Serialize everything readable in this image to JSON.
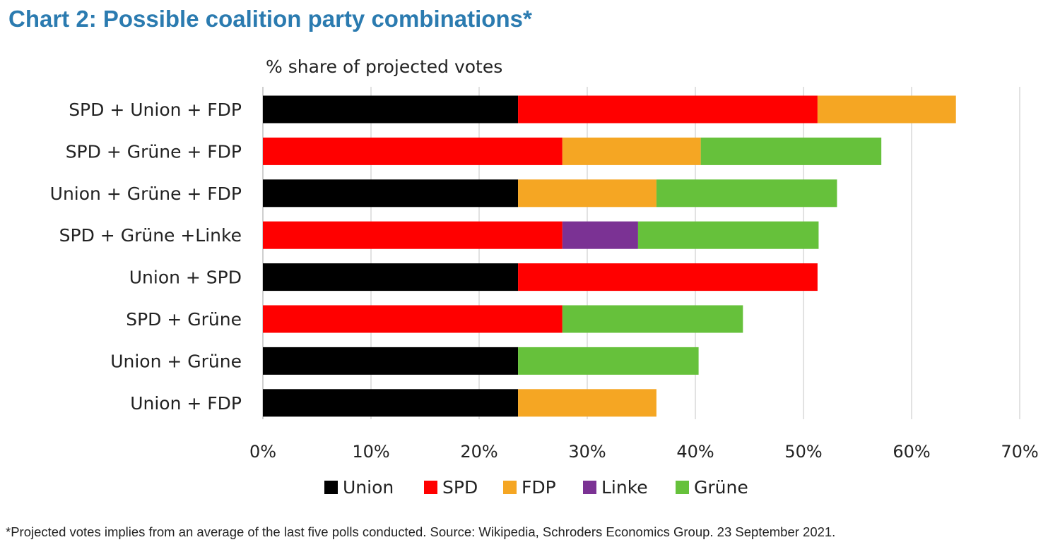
{
  "title": "Chart 2: Possible coalition party combinations*",
  "footnote": "*Projected votes implies from an average of the last five polls conducted. Source: Wikipedia, Schroders Economics Group. 23 September 2021.",
  "chart_data": {
    "type": "bar",
    "orientation": "horizontal",
    "stacked": true,
    "ylabel": "% share of projected votes",
    "xlim": [
      0,
      70
    ],
    "x_ticks": [
      0,
      10,
      20,
      30,
      40,
      50,
      60,
      70
    ],
    "tick_suffix": "%",
    "grid": true,
    "legend_position": "bottom",
    "categories": [
      "SPD + Union + FDP",
      "SPD + Grüne + FDP",
      "Union + Grüne + FDP",
      "SPD + Grüne +Linke",
      "Union + SPD",
      "SPD + Grüne",
      "Union + Grüne",
      "Union + FDP"
    ],
    "series": [
      {
        "name": "Union",
        "color": "#000000",
        "values": [
          23.6,
          0,
          23.6,
          0,
          23.6,
          0,
          23.6,
          23.6
        ]
      },
      {
        "name": "SPD",
        "color": "#ff0000",
        "values": [
          27.7,
          27.7,
          0,
          27.7,
          27.7,
          27.7,
          0,
          0
        ]
      },
      {
        "name": "FDP",
        "color": "#f5a623",
        "values": [
          12.8,
          12.8,
          12.8,
          0,
          0,
          0,
          0,
          12.8
        ]
      },
      {
        "name": "Linke",
        "color": "#7b3294",
        "values": [
          0,
          0,
          0,
          7.0,
          0,
          0,
          0,
          0
        ]
      },
      {
        "name": "Grüne",
        "color": "#66c13b",
        "values": [
          0,
          16.7,
          16.7,
          16.7,
          0,
          16.7,
          16.7,
          0
        ]
      }
    ],
    "stack_order": [
      [
        "Union",
        "SPD",
        "FDP"
      ],
      [
        "SPD",
        "FDP",
        "Grüne"
      ],
      [
        "Union",
        "FDP",
        "Grüne"
      ],
      [
        "SPD",
        "Linke",
        "Grüne"
      ],
      [
        "Union",
        "SPD"
      ],
      [
        "SPD",
        "Grüne"
      ],
      [
        "Union",
        "Grüne"
      ],
      [
        "Union",
        "FDP"
      ]
    ]
  }
}
